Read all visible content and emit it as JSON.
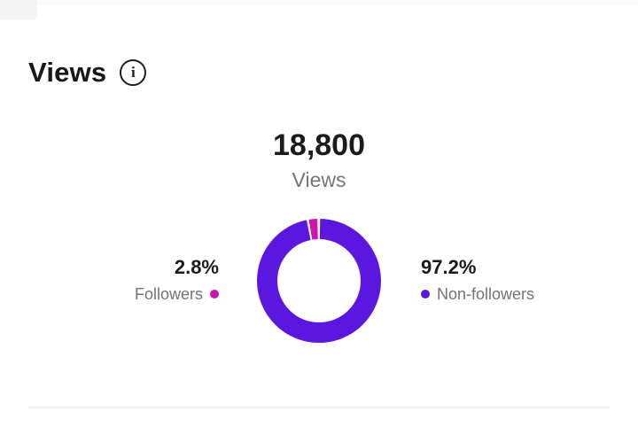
{
  "header": {
    "title": "Views"
  },
  "summary": {
    "value": "18,800",
    "label": "Views"
  },
  "chart_data": {
    "type": "pie",
    "subtype": "donut",
    "title": "Views",
    "total_value": 18800,
    "total_display": "18,800",
    "start_angle_deg": 0,
    "direction": "clockwise",
    "segment_gap_percent": 0.6,
    "legend_position": "sides",
    "series": [
      {
        "name": "Non-followers",
        "percent": 97.2,
        "display_percent": "97.2%",
        "color": "#5b16e0"
      },
      {
        "name": "Followers",
        "percent": 2.8,
        "display_percent": "2.8%",
        "color": "#d013b0"
      }
    ]
  },
  "colors": {
    "text_dark": "#1b1b1b",
    "text_gray": "#737373",
    "divider": "#f2f2f2",
    "top_strip": "#fafafa",
    "background": "#ffffff"
  }
}
